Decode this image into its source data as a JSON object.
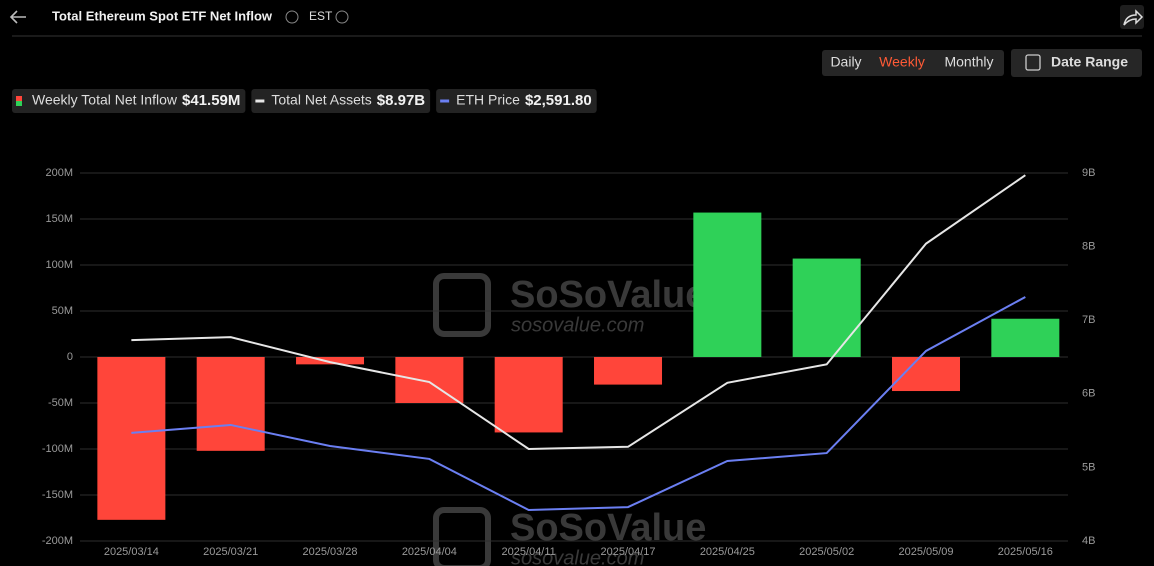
{
  "header": {
    "title": "Total Ethereum Spot ETF Net Inflow",
    "timezone": "EST",
    "periods": [
      "Daily",
      "Weekly",
      "Monthly"
    ],
    "active_period": "Weekly",
    "date_range": "Date Range"
  },
  "watermark": {
    "text": "SoSoValue",
    "url": "sosovalue.com"
  },
  "chart_data": {
    "type": "bar",
    "categories": [
      "2025/03/14",
      "2025/03/21",
      "2025/03/28",
      "2025/04/04",
      "2025/04/11",
      "2025/04/17",
      "2025/04/25",
      "2025/05/02",
      "2025/05/09",
      "2025/05/16"
    ],
    "series": [
      {
        "name": "Weekly Total Net Inflow",
        "header_value": "$41.59M",
        "type": "bar",
        "positive_color": "#2fd158",
        "negative_color": "#ff453a",
        "values": [
          -177,
          -102,
          -8,
          -50,
          -82,
          -30,
          157,
          107,
          -37,
          41.59
        ]
      },
      {
        "name": "Total Net Assets",
        "header_value": "$8.97B",
        "type": "line",
        "axis": "y2",
        "color": "#e6e6e6",
        "values": [
          6.73,
          6.77,
          6.43,
          6.16,
          5.25,
          5.28,
          6.15,
          6.4,
          8.04,
          8.97
        ]
      },
      {
        "name": "ETH Price",
        "header_value": "$2,591.80",
        "type": "line",
        "axis": "hidden",
        "color": "#6b7ff2",
        "values": [
          1940,
          1978,
          1877,
          1815,
          1570,
          1584,
          1805,
          1843,
          2333,
          2591.8
        ]
      }
    ],
    "ylim": [
      -200,
      200
    ],
    "yticks": [
      {
        "value": -200,
        "label": "-200M"
      },
      {
        "value": -150,
        "label": "-150M"
      },
      {
        "value": -100,
        "label": "-100M"
      },
      {
        "value": -50,
        "label": "-50M"
      },
      0,
      {
        "value": 50,
        "label": "50M"
      },
      {
        "value": 100,
        "label": "100M"
      },
      {
        "value": 150,
        "label": "150M"
      },
      {
        "value": 200,
        "label": "200M"
      }
    ],
    "y2lim": [
      4,
      9
    ],
    "y2ticks": [
      {
        "value": 4,
        "label": "4B"
      },
      {
        "value": 5,
        "label": "5B"
      },
      {
        "value": 6,
        "label": "6B"
      },
      {
        "value": 7,
        "label": "7B"
      },
      {
        "value": 8,
        "label": "8B"
      },
      {
        "value": 9,
        "label": "9B"
      }
    ],
    "grid": true
  }
}
